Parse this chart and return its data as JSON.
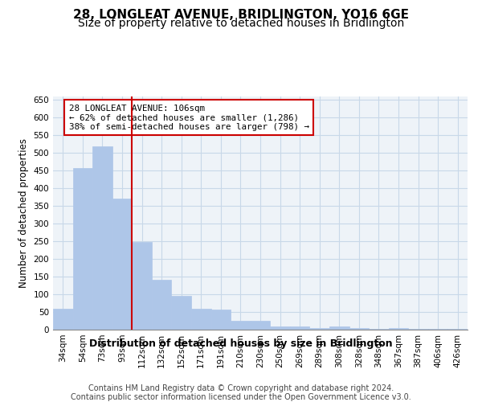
{
  "title": "28, LONGLEAT AVENUE, BRIDLINGTON, YO16 6GE",
  "subtitle": "Size of property relative to detached houses in Bridlington",
  "xlabel": "Distribution of detached houses by size in Bridlington",
  "ylabel": "Number of detached properties",
  "bar_labels": [
    "34sqm",
    "54sqm",
    "73sqm",
    "93sqm",
    "112sqm",
    "132sqm",
    "152sqm",
    "171sqm",
    "191sqm",
    "210sqm",
    "230sqm",
    "250sqm",
    "269sqm",
    "289sqm",
    "308sqm",
    "328sqm",
    "348sqm",
    "367sqm",
    "387sqm",
    "406sqm",
    "426sqm"
  ],
  "bar_values": [
    60,
    458,
    520,
    370,
    248,
    140,
    95,
    60,
    57,
    25,
    25,
    8,
    10,
    5,
    8,
    5,
    3,
    5,
    3,
    2,
    2
  ],
  "bar_color": "#aec6e8",
  "bar_edgecolor": "#aec6e8",
  "grid_color": "#c8d8e8",
  "bg_color": "#eef3f8",
  "vline_x_idx": 4,
  "vline_color": "#cc0000",
  "annotation_line1": "28 LONGLEAT AVENUE: 106sqm",
  "annotation_line2": "← 62% of detached houses are smaller (1,286)",
  "annotation_line3": "38% of semi-detached houses are larger (798) →",
  "annotation_box_color": "#cc0000",
  "ylim": [
    0,
    660
  ],
  "yticks": [
    0,
    50,
    100,
    150,
    200,
    250,
    300,
    350,
    400,
    450,
    500,
    550,
    600,
    650
  ],
  "footer": "Contains HM Land Registry data © Crown copyright and database right 2024.\nContains public sector information licensed under the Open Government Licence v3.0.",
  "title_fontsize": 11,
  "subtitle_fontsize": 10,
  "xlabel_fontsize": 9,
  "ylabel_fontsize": 8.5,
  "tick_fontsize": 7.5,
  "footer_fontsize": 7
}
